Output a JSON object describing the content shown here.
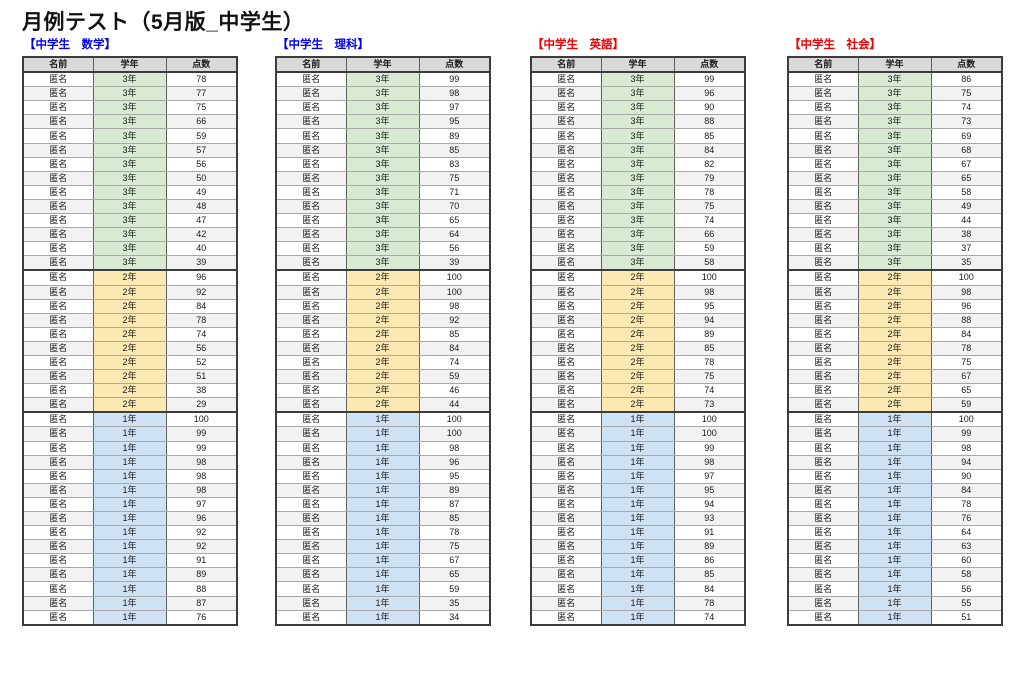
{
  "page": {
    "title": "月例テスト（5月版_中学生）"
  },
  "columns": [
    "名前",
    "学年",
    "点数"
  ],
  "name_value": "匿名",
  "colors": {
    "label_blue": "#0000ee",
    "label_red": "#ee0000",
    "header_bg": "#d9d9d9",
    "row_alt_bg": "#f2f2f2",
    "grade3_bg": "#d9ead3",
    "grade2_bg": "#fce8b2",
    "grade1_bg": "#cfe2f3"
  },
  "tables": [
    {
      "label": "【中学生　数学】",
      "label_color": "#0000ee",
      "groups": [
        {
          "grade": "3年",
          "scores": [
            78,
            77,
            75,
            66,
            59,
            57,
            56,
            50,
            49,
            48,
            47,
            42,
            40,
            39
          ]
        },
        {
          "grade": "2年",
          "scores": [
            96,
            92,
            84,
            78,
            74,
            56,
            52,
            51,
            38,
            29
          ]
        },
        {
          "grade": "1年",
          "scores": [
            100,
            99,
            99,
            98,
            98,
            98,
            97,
            96,
            92,
            92,
            91,
            89,
            88,
            87,
            76
          ]
        }
      ]
    },
    {
      "label": "【中学生　理科】",
      "label_color": "#0000ee",
      "groups": [
        {
          "grade": "3年",
          "scores": [
            99,
            98,
            97,
            95,
            89,
            85,
            83,
            75,
            71,
            70,
            65,
            64,
            56,
            39
          ]
        },
        {
          "grade": "2年",
          "scores": [
            100,
            100,
            98,
            92,
            85,
            84,
            74,
            59,
            46,
            44
          ]
        },
        {
          "grade": "1年",
          "scores": [
            100,
            100,
            98,
            96,
            95,
            89,
            87,
            85,
            78,
            75,
            67,
            65,
            59,
            35,
            34
          ]
        }
      ]
    },
    {
      "label": "【中学生　英語】",
      "label_color": "#ee0000",
      "groups": [
        {
          "grade": "3年",
          "scores": [
            99,
            96,
            90,
            88,
            85,
            84,
            82,
            79,
            78,
            75,
            74,
            66,
            59,
            58
          ]
        },
        {
          "grade": "2年",
          "scores": [
            100,
            98,
            95,
            94,
            89,
            85,
            78,
            75,
            74,
            73
          ]
        },
        {
          "grade": "1年",
          "scores": [
            100,
            100,
            99,
            98,
            97,
            95,
            94,
            93,
            91,
            89,
            86,
            85,
            84,
            78,
            74
          ]
        }
      ]
    },
    {
      "label": "【中学生　社会】",
      "label_color": "#ee0000",
      "groups": [
        {
          "grade": "3年",
          "scores": [
            86,
            75,
            74,
            73,
            69,
            68,
            67,
            65,
            58,
            49,
            44,
            38,
            37,
            35
          ]
        },
        {
          "grade": "2年",
          "scores": [
            100,
            98,
            96,
            88,
            84,
            78,
            75,
            67,
            65,
            59
          ]
        },
        {
          "grade": "1年",
          "scores": [
            100,
            99,
            98,
            94,
            90,
            84,
            78,
            76,
            64,
            63,
            60,
            58,
            56,
            55,
            51
          ]
        }
      ]
    }
  ]
}
